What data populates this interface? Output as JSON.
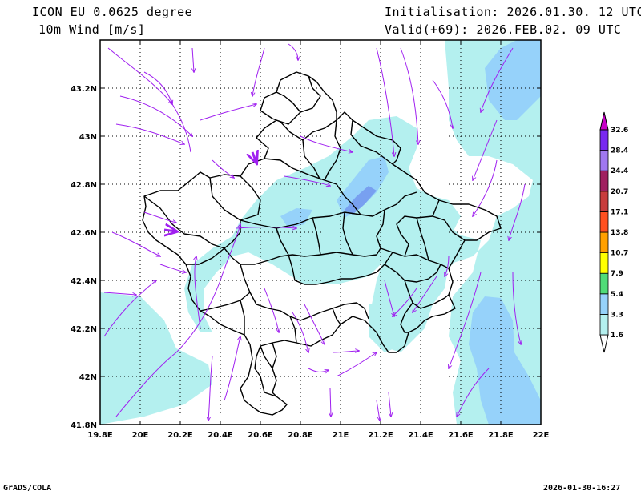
{
  "header": {
    "model_title": "ICON EU 0.0625 degree",
    "variable": "10m Wind [m/s]",
    "initialisation": "Initialisation: 2026.01.30. 12 UTC",
    "valid": "Valid(+69): 2026.FEB.02. 09 UTC"
  },
  "footer": {
    "software": "GrADS/COLA",
    "timestamp": "2026-01-30-16:27"
  },
  "map": {
    "x_ticks": [
      "19.8E",
      "20E",
      "20.2E",
      "20.4E",
      "20.6E",
      "20.8E",
      "21E",
      "21.2E",
      "21.4E",
      "21.6E",
      "21.8E",
      "22E"
    ],
    "y_ticks": [
      "43.2N",
      "43N",
      "42.8N",
      "42.6N",
      "42.4N",
      "42.2N",
      "42N",
      "41.8N"
    ],
    "lon_range": [
      19.8,
      22.0
    ],
    "lat_range": [
      41.8,
      43.4
    ],
    "grid": true,
    "fill_colors": {
      "light_cyan": "#b4f0ef",
      "light_blue": "#96d2fa",
      "mid_blue": "#78a0f0",
      "border": "#000000",
      "streamline": "#a020f0"
    }
  },
  "colorbar": {
    "labels": [
      "1.6",
      "3.3",
      "5.4",
      "7.9",
      "10.7",
      "13.8",
      "17.1",
      "20.7",
      "24.4",
      "28.4",
      "32.6"
    ],
    "colors": [
      "#b4f0ef",
      "#96d2fa",
      "#50dc78",
      "#ffff00",
      "#ffa000",
      "#ff5020",
      "#c83c3c",
      "#a02060",
      "#a078f0",
      "#7828f0",
      "#c800c8"
    ]
  }
}
